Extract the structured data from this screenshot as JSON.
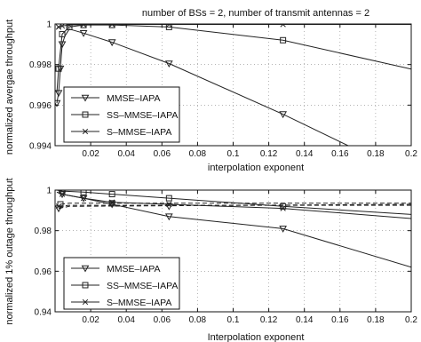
{
  "chart_data": [
    {
      "type": "line",
      "title": "number of BSs = 2, number of transmit antennas = 2",
      "xlabel": "interpolation exponent",
      "ylabel": "normalized avergae throughput",
      "xlim": [
        0,
        0.2
      ],
      "ylim": [
        0.994,
        1.0
      ],
      "xticks": [
        "0.02",
        "0.04",
        "0.06",
        "0.08",
        "0.1",
        "0.12",
        "0.14",
        "0.16",
        "0.18",
        "0.2"
      ],
      "yticks": [
        "0.994",
        "0.996",
        "0.998",
        "1"
      ],
      "grid": true,
      "legend_position": "bottom-left",
      "series": [
        {
          "name": "MMSE–IAPA",
          "marker": "triangle",
          "solid": [
            [
              0.001,
              0.9961
            ],
            [
              0.002,
              0.9966
            ],
            [
              0.003,
              0.9978
            ],
            [
              0.004,
              0.999
            ],
            [
              0.0055,
              0.9994
            ],
            [
              0.008,
              0.99975
            ],
            [
              0.016,
              0.99955
            ],
            [
              0.032,
              0.9991
            ],
            [
              0.064,
              0.99805
            ],
            [
              0.128,
              0.99555
            ],
            [
              0.2,
              0.9925
            ]
          ],
          "markers": [
            [
              0.001,
              0.9961
            ],
            [
              0.002,
              0.9966
            ],
            [
              0.003,
              0.9978
            ],
            [
              0.004,
              0.999
            ],
            [
              0.016,
              0.99955
            ],
            [
              0.032,
              0.9991
            ],
            [
              0.064,
              0.99805
            ],
            [
              0.128,
              0.99555
            ]
          ]
        },
        {
          "name": "SS–MMSE–IAPA",
          "marker": "square",
          "solid": [
            [
              0.001,
              0.9966
            ],
            [
              0.002,
              0.9978
            ],
            [
              0.004,
              0.9995
            ],
            [
              0.008,
              0.99985
            ],
            [
              0.016,
              0.99995
            ],
            [
              0.032,
              0.99995
            ],
            [
              0.064,
              0.99985
            ],
            [
              0.128,
              0.9992
            ],
            [
              0.2,
              0.99778
            ]
          ],
          "markers": [
            [
              0.002,
              0.9978
            ],
            [
              0.004,
              0.9995
            ],
            [
              0.008,
              0.99985
            ],
            [
              0.016,
              0.99995
            ],
            [
              0.032,
              0.99995
            ],
            [
              0.064,
              0.99985
            ],
            [
              0.128,
              0.9992
            ]
          ]
        },
        {
          "name": "S–MMSE–IAPA",
          "marker": "x",
          "solid": [
            [
              0.001,
              0.9998
            ],
            [
              0.002,
              0.99985
            ],
            [
              0.004,
              0.9999
            ],
            [
              0.008,
              0.99995
            ],
            [
              0.016,
              0.99997
            ],
            [
              0.032,
              0.99998
            ],
            [
              0.064,
              0.99998
            ],
            [
              0.128,
              0.99998
            ],
            [
              0.2,
              0.99998
            ]
          ],
          "markers": [
            [
              0.002,
              0.99985
            ],
            [
              0.004,
              0.9999
            ],
            [
              0.008,
              0.99995
            ],
            [
              0.016,
              0.99997
            ],
            [
              0.032,
              0.99998
            ],
            [
              0.064,
              0.99998
            ],
            [
              0.128,
              0.99998
            ]
          ]
        }
      ]
    },
    {
      "type": "line",
      "title": "",
      "xlabel": "Interpolation exponent",
      "ylabel": "normalized 1% outage throughput",
      "xlim": [
        0,
        0.2
      ],
      "ylim": [
        0.94,
        1.0
      ],
      "xticks": [
        "0.02",
        "0.04",
        "0.06",
        "0.08",
        "0.1",
        "0.12",
        "0.14",
        "0.16",
        "0.18",
        "0.2"
      ],
      "yticks": [
        "0.94",
        "0.96",
        "0.98",
        "1"
      ],
      "grid": true,
      "legend_position": "bottom-left",
      "series": [
        {
          "name": "MMSE–IAPA",
          "marker": "triangle",
          "solid": [
            [
              0.001,
              0.999
            ],
            [
              0.004,
              0.998
            ],
            [
              0.016,
              0.996
            ],
            [
              0.032,
              0.993
            ],
            [
              0.064,
              0.987
            ],
            [
              0.128,
              0.981
            ],
            [
              0.2,
              0.962
            ]
          ],
          "dashed": [
            [
              0.002,
              0.991
            ],
            [
              0.008,
              0.992
            ],
            [
              0.2,
              0.993
            ]
          ],
          "markers": [
            [
              0.002,
              0.991
            ],
            [
              0.004,
              0.998
            ],
            [
              0.016,
              0.996
            ],
            [
              0.032,
              0.993
            ],
            [
              0.064,
              0.987
            ],
            [
              0.064,
              0.992
            ],
            [
              0.128,
              0.981
            ]
          ]
        },
        {
          "name": "SS–MMSE–IAPA",
          "marker": "square",
          "solid": [
            [
              0.001,
              1.0
            ],
            [
              0.004,
              0.9995
            ],
            [
              0.016,
              0.999
            ],
            [
              0.032,
              0.998
            ],
            [
              0.064,
              0.996
            ],
            [
              0.128,
              0.992
            ],
            [
              0.2,
              0.988
            ]
          ],
          "dashed": [
            [
              0.003,
              0.993
            ],
            [
              0.008,
              0.9935
            ],
            [
              0.2,
              0.9935
            ]
          ],
          "markers": [
            [
              0.003,
              0.993
            ],
            [
              0.004,
              0.9995
            ],
            [
              0.016,
              0.999
            ],
            [
              0.032,
              0.998
            ],
            [
              0.032,
              0.9935
            ],
            [
              0.064,
              0.996
            ],
            [
              0.128,
              0.992
            ]
          ]
        },
        {
          "name": "S–MMSE–IAPA",
          "marker": "x",
          "solid": [
            [
              0.001,
              0.999
            ],
            [
              0.004,
              0.998
            ],
            [
              0.016,
              0.996
            ],
            [
              0.032,
              0.994
            ],
            [
              0.064,
              0.993
            ],
            [
              0.128,
              0.991
            ],
            [
              0.2,
              0.986
            ]
          ],
          "dashed": [
            [
              0.002,
              0.992
            ],
            [
              0.008,
              0.9925
            ],
            [
              0.2,
              0.9925
            ]
          ],
          "markers": [
            [
              0.002,
              0.992
            ],
            [
              0.004,
              0.998
            ],
            [
              0.016,
              0.996
            ],
            [
              0.032,
              0.994
            ],
            [
              0.064,
              0.993
            ],
            [
              0.128,
              0.991
            ]
          ]
        }
      ]
    }
  ]
}
